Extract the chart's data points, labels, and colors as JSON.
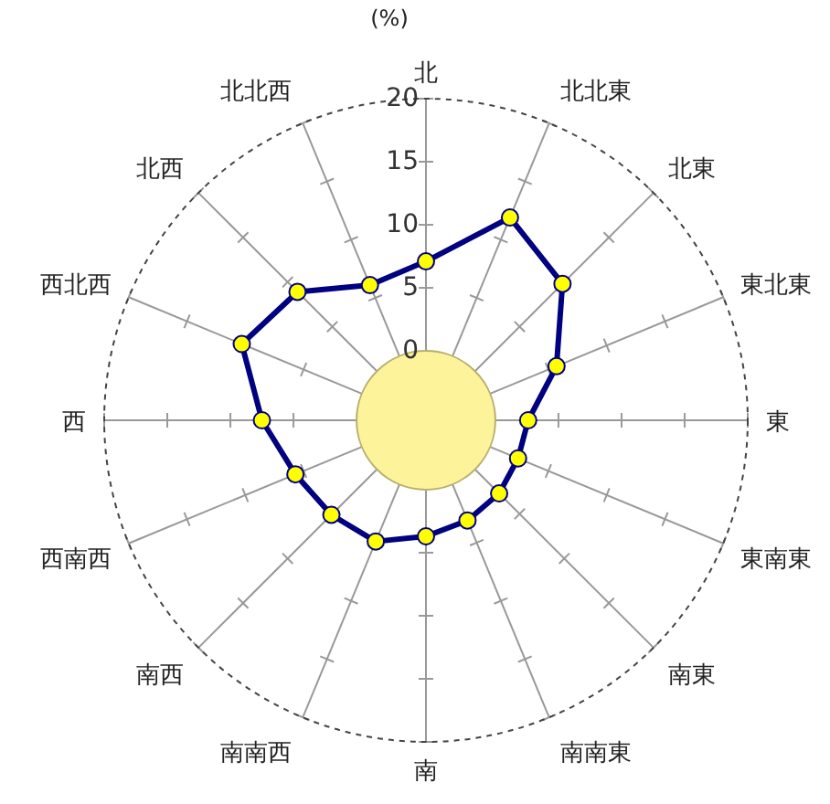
{
  "chart_data": {
    "type": "radar",
    "ylabel": "(%)",
    "categories": [
      "北",
      "北北東",
      "北東",
      "東北東",
      "東",
      "東南東",
      "南東",
      "南南東",
      "南",
      "南南西",
      "南西",
      "西南西",
      "西",
      "西北西",
      "北西",
      "北北西"
    ],
    "series": [
      {
        "color": "#000080",
        "values": [
          7.1,
          11.9,
          9.8,
          5.7,
          2.6,
          2.4,
          2.7,
          3.1,
          3.7,
          4.9,
          5.1,
          5.7,
          7.5,
          10.3,
          8.9,
          6.1
        ]
      }
    ],
    "ylim": [
      -5.5,
      20
    ],
    "yticks": [
      0,
      5,
      10,
      15,
      20
    ],
    "grid": true,
    "marker": "circle",
    "line_style": "solid"
  }
}
